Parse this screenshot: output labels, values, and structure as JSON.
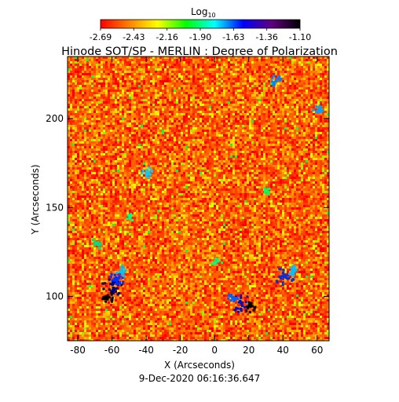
{
  "chart_data": {
    "type": "heatmap",
    "title": "Hinode SOT/SP - MERLIN : Degree of Polarization",
    "colorbar": {
      "label_main": "Log",
      "label_sub": "10",
      "ticks": [
        "-2.69",
        "-2.43",
        "-2.16",
        "-1.90",
        "-1.63",
        "-1.36",
        "-1.10"
      ],
      "range": [
        -2.69,
        -1.1
      ],
      "colormap": [
        "#ff0000",
        "#ff8000",
        "#ffff00",
        "#00ff00",
        "#00ffff",
        "#0000ff",
        "#600080",
        "#000000"
      ]
    },
    "xlabel": "X (Arcseconds)",
    "ylabel": "Y (Arcseconds)",
    "xlim": [
      -86,
      67
    ],
    "ylim": [
      75,
      235
    ],
    "xticks": [
      -80,
      -60,
      -40,
      -20,
      0,
      20,
      40,
      60
    ],
    "yticks": [
      100,
      150,
      200
    ],
    "timestamp": "9-Dec-2020 06:16:36.647",
    "grid": false,
    "field_texture": "mostly red/orange (≈ -2.5 to -2.2), yellow-green network, blue/black patches near (-60,105), (15,97), (40,112), (-40,170), (60,205), (35,222)"
  }
}
